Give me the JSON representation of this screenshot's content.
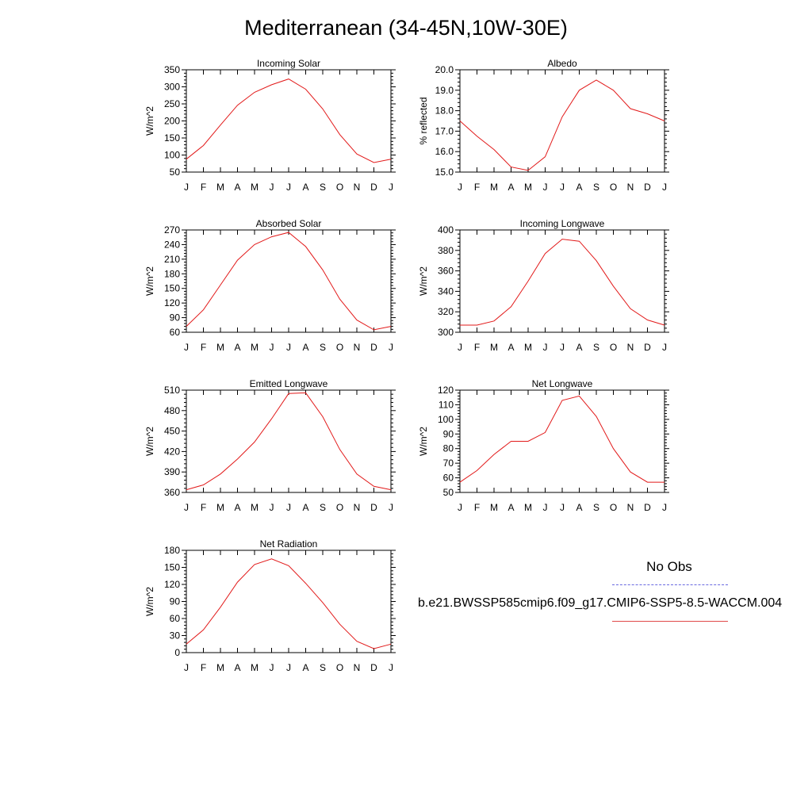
{
  "title": "Mediterranean (34-45N,10W-30E)",
  "legend": {
    "obs_label": "No Obs",
    "obs_color": "#5a5ae6",
    "case_label": "b.e21.BWSSP585cmip6.f09_g17.CMIP6-SSP5-8.5-WACCM.004",
    "case_color": "#e21a1a"
  },
  "chart_data": [
    {
      "type": "line",
      "title": "Incoming Solar",
      "ylabel": "W/m^2",
      "ylim": [
        50,
        350
      ],
      "yticks": [
        50,
        100,
        150,
        200,
        250,
        300,
        350
      ],
      "ytick_labels": [
        "50",
        "100",
        "150",
        "200",
        "250",
        "300",
        "350"
      ],
      "x": [
        "J",
        "F",
        "M",
        "A",
        "M",
        "J",
        "J",
        "A",
        "S",
        "O",
        "N",
        "D",
        "J"
      ],
      "values": [
        88,
        128,
        188,
        246,
        284,
        306,
        323,
        293,
        235,
        160,
        103,
        78,
        88
      ]
    },
    {
      "type": "line",
      "title": "Albedo",
      "ylabel": "% reflected",
      "ylim": [
        15.0,
        20.0
      ],
      "yticks": [
        15,
        16,
        17,
        18,
        19,
        20
      ],
      "ytick_labels": [
        "15.0",
        "16.0",
        "17.0",
        "18.0",
        "19.0",
        "20.0"
      ],
      "x": [
        "J",
        "F",
        "M",
        "A",
        "M",
        "J",
        "J",
        "A",
        "S",
        "O",
        "N",
        "D",
        "J"
      ],
      "values": [
        17.5,
        16.75,
        16.1,
        15.25,
        15.08,
        15.75,
        17.7,
        19.0,
        19.5,
        19.0,
        18.1,
        17.85,
        17.5
      ]
    },
    {
      "type": "line",
      "title": "Absorbed Solar",
      "ylabel": "W/m^2",
      "ylim": [
        60,
        270
      ],
      "yticks": [
        60,
        90,
        120,
        150,
        180,
        210,
        240,
        270
      ],
      "ytick_labels": [
        "60",
        "90",
        "120",
        "150",
        "180",
        "210",
        "240",
        "270"
      ],
      "x": [
        "J",
        "F",
        "M",
        "A",
        "M",
        "J",
        "J",
        "A",
        "S",
        "O",
        "N",
        "D",
        "J"
      ],
      "values": [
        72,
        106,
        157,
        208,
        240,
        256,
        265,
        236,
        188,
        128,
        85,
        65,
        72
      ]
    },
    {
      "type": "line",
      "title": "Incoming Longwave",
      "ylabel": "W/m^2",
      "ylim": [
        300,
        400
      ],
      "yticks": [
        300,
        320,
        340,
        360,
        380,
        400
      ],
      "ytick_labels": [
        "300",
        "320",
        "340",
        "360",
        "380",
        "400"
      ],
      "x": [
        "J",
        "F",
        "M",
        "A",
        "M",
        "J",
        "J",
        "A",
        "S",
        "O",
        "N",
        "D",
        "J"
      ],
      "values": [
        307,
        307,
        311,
        325,
        350,
        377,
        391,
        389,
        370,
        345,
        323,
        312,
        307
      ]
    },
    {
      "type": "line",
      "title": "Emitted Longwave",
      "ylabel": "W/m^2",
      "ylim": [
        360,
        510
      ],
      "yticks": [
        360,
        390,
        420,
        450,
        480,
        510
      ],
      "ytick_labels": [
        "360",
        "390",
        "420",
        "450",
        "480",
        "510"
      ],
      "x": [
        "J",
        "F",
        "M",
        "A",
        "M",
        "J",
        "J",
        "A",
        "S",
        "O",
        "N",
        "D",
        "J"
      ],
      "values": [
        364,
        371,
        387,
        409,
        434,
        468,
        505,
        506,
        471,
        423,
        387,
        369,
        364
      ]
    },
    {
      "type": "line",
      "title": "Net Longwave",
      "ylabel": "W/m^2",
      "ylim": [
        50,
        120
      ],
      "yticks": [
        50,
        60,
        70,
        80,
        90,
        100,
        110,
        120
      ],
      "ytick_labels": [
        "50",
        "60",
        "70",
        "80",
        "90",
        "100",
        "110",
        "120"
      ],
      "x": [
        "J",
        "F",
        "M",
        "A",
        "M",
        "J",
        "J",
        "A",
        "S",
        "O",
        "N",
        "D",
        "J"
      ],
      "values": [
        57,
        65,
        76,
        85,
        85,
        91,
        113,
        116,
        102,
        80,
        64,
        57,
        57
      ]
    },
    {
      "type": "line",
      "title": "Net Radiation",
      "ylabel": "W/m^2",
      "ylim": [
        0,
        180
      ],
      "yticks": [
        0,
        30,
        60,
        90,
        120,
        150,
        180
      ],
      "ytick_labels": [
        "0",
        "30",
        "60",
        "90",
        "120",
        "150",
        "180"
      ],
      "x": [
        "J",
        "F",
        "M",
        "A",
        "M",
        "J",
        "J",
        "A",
        "S",
        "O",
        "N",
        "D",
        "J"
      ],
      "values": [
        15,
        40,
        80,
        124,
        155,
        165,
        153,
        122,
        88,
        50,
        20,
        7,
        15
      ]
    }
  ]
}
